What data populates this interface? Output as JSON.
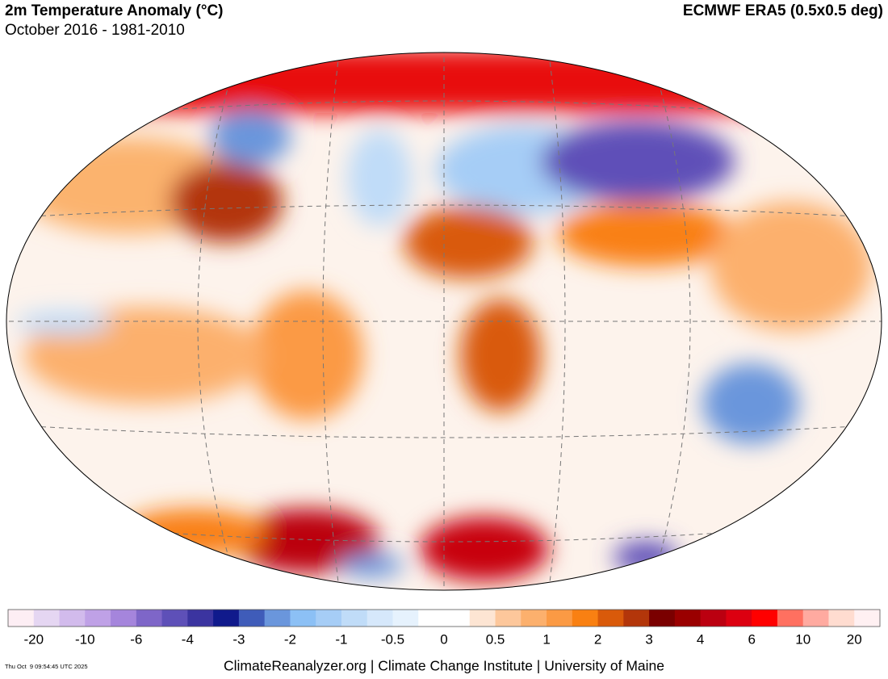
{
  "header": {
    "title": "2m Temperature Anomaly (°C)",
    "subtitle": "October 2016 - 1981-2010",
    "dataset": "ECMWF ERA5 (0.5x0.5 deg)"
  },
  "legend": {
    "colors": [
      "#fdeef4",
      "#e5d6f2",
      "#d2bbec",
      "#bfa1e6",
      "#a585dc",
      "#7e66c8",
      "#5e50b8",
      "#3b34a0",
      "#101a8c",
      "#3f5cb9",
      "#6a96dc",
      "#8cc0f5",
      "#a6cdf6",
      "#c0dcf8",
      "#d6e8fb",
      "#e6f2fd",
      "#ffffff",
      "#ffffff",
      "#fde5d3",
      "#fdc79b",
      "#fcb06d",
      "#fb9a44",
      "#f98012",
      "#d95a0a",
      "#b3360a",
      "#7a0000",
      "#9a0000",
      "#bb0010",
      "#dc0010",
      "#ff0000",
      "#ff7060",
      "#ffaaa0",
      "#ffdcd0",
      "#fff0f2"
    ],
    "ticks": [
      -20,
      -10,
      -6,
      -4,
      -3,
      -2,
      -1,
      -0.5,
      0,
      0.5,
      1,
      2,
      3,
      4,
      6,
      10,
      20
    ]
  },
  "footer": {
    "timestamp": "Thu Oct  9 09:54:45 UTC 2025",
    "credit": "ClimateReanalyzer.org | Climate Change Institute | University of Maine"
  }
}
